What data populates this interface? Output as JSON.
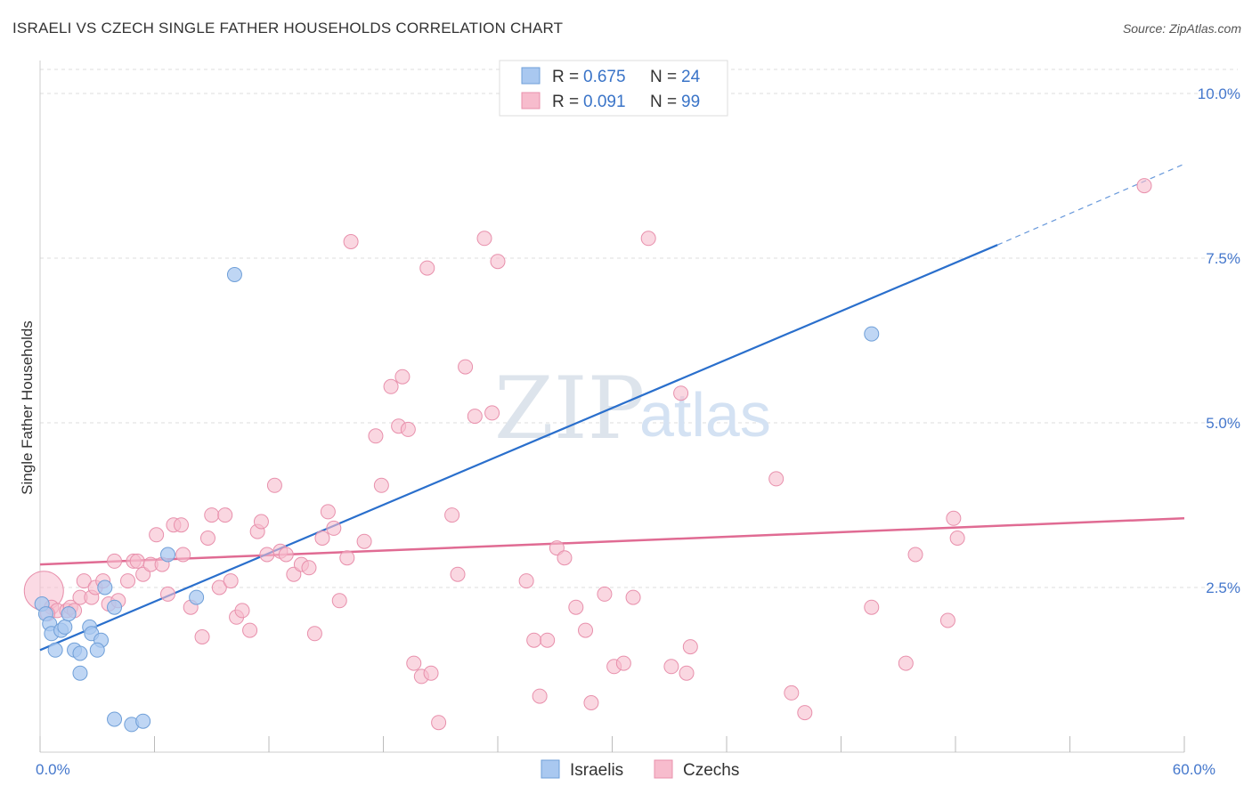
{
  "title": "ISRAELI VS CZECH SINGLE FATHER HOUSEHOLDS CORRELATION CHART",
  "source": "Source: ZipAtlas.com",
  "watermark": {
    "zip": "ZIP",
    "atlas": "atlas"
  },
  "colors": {
    "blue_fill": "#a9c8f0",
    "blue_stroke": "#6f9fd8",
    "blue_line": "#2a6fcc",
    "pink_fill": "#f7bccd",
    "pink_stroke": "#e890ac",
    "pink_line": "#e06b93",
    "grid": "#dddddd",
    "axis_tick_text": "#4477cc"
  },
  "legend": {
    "rows": [
      {
        "r_label": "R = ",
        "r_value": "0.675",
        "n_label": "N = ",
        "n_value": "24"
      },
      {
        "r_label": "R = ",
        "r_value": "0.091",
        "n_label": "N = ",
        "n_value": "99"
      }
    ]
  },
  "chart_data": {
    "type": "scatter",
    "title": "ISRAELI VS CZECH SINGLE FATHER HOUSEHOLDS CORRELATION CHART",
    "xlabel": "",
    "ylabel": "Single Father Households",
    "xlim": [
      0,
      60
    ],
    "ylim": [
      0,
      10.5
    ],
    "x_tick_labels": [
      {
        "value": 0,
        "label": "0.0%"
      },
      {
        "value": 60,
        "label": "60.0%"
      }
    ],
    "y_tick_labels": [
      {
        "value": 2.5,
        "label": "2.5%"
      },
      {
        "value": 5.0,
        "label": "5.0%"
      },
      {
        "value": 7.5,
        "label": "7.5%"
      },
      {
        "value": 10.0,
        "label": "10.0%"
      }
    ],
    "series": [
      {
        "name": "Israelis",
        "R": 0.675,
        "N": 24,
        "trend": {
          "x0": 0,
          "y0": 1.55,
          "x1": 50.2,
          "y1": 7.7,
          "dash_to_x": 60,
          "dash_to_y": 8.93
        },
        "points": [
          [
            0.1,
            2.25
          ],
          [
            0.3,
            2.1
          ],
          [
            0.5,
            1.95
          ],
          [
            0.6,
            1.8
          ],
          [
            0.8,
            1.55
          ],
          [
            1.1,
            1.85
          ],
          [
            1.3,
            1.9
          ],
          [
            1.5,
            2.1
          ],
          [
            1.8,
            1.55
          ],
          [
            2.1,
            1.5
          ],
          [
            2.6,
            1.9
          ],
          [
            2.7,
            1.8
          ],
          [
            3.2,
            1.7
          ],
          [
            3.0,
            1.55
          ],
          [
            3.4,
            2.5
          ],
          [
            3.9,
            2.2
          ],
          [
            2.1,
            1.2
          ],
          [
            3.9,
            0.5
          ],
          [
            4.8,
            0.42
          ],
          [
            5.4,
            0.47
          ],
          [
            6.7,
            3.0
          ],
          [
            8.2,
            2.35
          ],
          [
            10.2,
            7.25
          ],
          [
            43.6,
            6.35
          ]
        ]
      },
      {
        "name": "Czechs",
        "R": 0.091,
        "N": 99,
        "trend": {
          "x0": 0,
          "y0": 2.85,
          "x1": 60,
          "y1": 3.55
        },
        "points": [
          [
            0.2,
            2.45
          ],
          [
            0.6,
            2.2
          ],
          [
            0.9,
            2.15
          ],
          [
            1.4,
            2.15
          ],
          [
            1.6,
            2.2
          ],
          [
            2.1,
            2.35
          ],
          [
            2.3,
            2.6
          ],
          [
            2.7,
            2.35
          ],
          [
            2.9,
            2.5
          ],
          [
            3.3,
            2.6
          ],
          [
            3.6,
            2.25
          ],
          [
            3.9,
            2.9
          ],
          [
            4.1,
            2.3
          ],
          [
            4.6,
            2.6
          ],
          [
            4.9,
            2.9
          ],
          [
            5.1,
            2.9
          ],
          [
            5.4,
            2.7
          ],
          [
            5.8,
            2.85
          ],
          [
            6.1,
            3.3
          ],
          [
            6.4,
            2.85
          ],
          [
            6.7,
            2.4
          ],
          [
            7.0,
            3.45
          ],
          [
            7.4,
            3.45
          ],
          [
            7.5,
            3.0
          ],
          [
            7.9,
            2.2
          ],
          [
            8.5,
            1.75
          ],
          [
            8.8,
            3.25
          ],
          [
            9.0,
            3.6
          ],
          [
            9.4,
            2.5
          ],
          [
            9.7,
            3.6
          ],
          [
            10.0,
            2.6
          ],
          [
            10.3,
            2.05
          ],
          [
            10.6,
            2.15
          ],
          [
            11.0,
            1.85
          ],
          [
            11.4,
            3.35
          ],
          [
            11.6,
            3.5
          ],
          [
            11.9,
            3.0
          ],
          [
            12.3,
            4.05
          ],
          [
            12.6,
            3.05
          ],
          [
            12.9,
            3.0
          ],
          [
            13.3,
            2.7
          ],
          [
            13.7,
            2.85
          ],
          [
            14.1,
            2.8
          ],
          [
            14.4,
            1.8
          ],
          [
            14.8,
            3.25
          ],
          [
            15.1,
            3.65
          ],
          [
            15.4,
            3.4
          ],
          [
            15.7,
            2.3
          ],
          [
            16.1,
            2.95
          ],
          [
            16.3,
            7.75
          ],
          [
            17.0,
            3.2
          ],
          [
            17.6,
            4.8
          ],
          [
            17.9,
            4.05
          ],
          [
            18.4,
            5.55
          ],
          [
            18.8,
            4.95
          ],
          [
            19.0,
            5.7
          ],
          [
            19.3,
            4.9
          ],
          [
            19.6,
            1.35
          ],
          [
            20.0,
            1.15
          ],
          [
            20.3,
            7.35
          ],
          [
            20.5,
            1.2
          ],
          [
            20.9,
            0.45
          ],
          [
            21.6,
            3.6
          ],
          [
            21.9,
            2.7
          ],
          [
            22.3,
            5.85
          ],
          [
            22.8,
            5.1
          ],
          [
            23.3,
            7.8
          ],
          [
            23.7,
            5.15
          ],
          [
            24.0,
            7.45
          ],
          [
            25.5,
            2.6
          ],
          [
            25.9,
            1.7
          ],
          [
            26.2,
            0.85
          ],
          [
            26.6,
            1.7
          ],
          [
            27.1,
            3.1
          ],
          [
            27.5,
            2.95
          ],
          [
            28.1,
            2.2
          ],
          [
            28.6,
            1.85
          ],
          [
            28.9,
            0.75
          ],
          [
            29.6,
            2.4
          ],
          [
            30.1,
            1.3
          ],
          [
            30.6,
            1.35
          ],
          [
            31.1,
            2.35
          ],
          [
            31.9,
            7.8
          ],
          [
            33.1,
            1.3
          ],
          [
            33.6,
            5.45
          ],
          [
            33.9,
            1.2
          ],
          [
            34.1,
            1.6
          ],
          [
            38.6,
            4.15
          ],
          [
            39.4,
            0.9
          ],
          [
            40.1,
            0.6
          ],
          [
            43.6,
            2.2
          ],
          [
            45.4,
            1.35
          ],
          [
            45.9,
            3.0
          ],
          [
            47.6,
            2.0
          ],
          [
            47.9,
            3.55
          ],
          [
            48.1,
            3.25
          ],
          [
            57.9,
            8.6
          ],
          [
            0.4,
            2.1
          ],
          [
            1.8,
            2.15
          ]
        ]
      }
    ],
    "legend_position": "top-center"
  }
}
